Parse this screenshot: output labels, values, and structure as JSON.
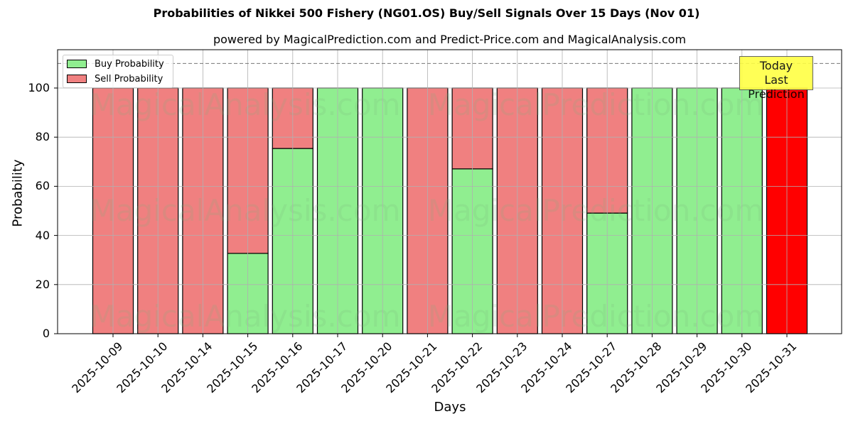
{
  "title": "Probabilities of Nikkei 500 Fishery (NG01.OS) Buy/Sell Signals Over 15 Days (Nov 01)",
  "subtitle": "powered by MagicalPrediction.com and Predict-Price.com and MagicalAnalysis.com",
  "legend": {
    "buy_label": "Buy Probability",
    "sell_label": "Sell Probability"
  },
  "annotation": {
    "line1": "Today",
    "line2": "Last Prediction"
  },
  "watermarks": [
    "MagicalAnalysis.com",
    "MagicalPrediction.com"
  ],
  "colors": {
    "buy": "#90ee90",
    "sell": "#f08080",
    "today": "#ff0000",
    "annotation_bg": "#ffff44"
  },
  "chart_data": {
    "type": "bar",
    "stacked": true,
    "title": "Probabilities of Nikkei 500 Fishery (NG01.OS) Buy/Sell Signals Over 15 Days (Nov 01)",
    "subtitle": "powered by MagicalPrediction.com and Predict-Price.com and MagicalAnalysis.com",
    "xlabel": "Days",
    "ylabel": "Probability",
    "ylim": [
      0,
      115.6
    ],
    "yticks": [
      0,
      20,
      40,
      60,
      80,
      100
    ],
    "grid": true,
    "legend_position": "upper left",
    "reference_line": {
      "y": 110,
      "style": "dashed"
    },
    "categories": [
      "2025-10-09",
      "2025-10-10",
      "2025-10-14",
      "2025-10-15",
      "2025-10-16",
      "2025-10-17",
      "2025-10-20",
      "2025-10-21",
      "2025-10-22",
      "2025-10-23",
      "2025-10-24",
      "2025-10-27",
      "2025-10-28",
      "2025-10-29",
      "2025-10-30",
      "2025-10-31"
    ],
    "series": [
      {
        "name": "Buy Probability",
        "values": [
          0,
          0,
          0,
          32.7,
          75.4,
          100,
          100,
          0,
          67.1,
          0,
          0,
          49.1,
          100,
          100,
          100,
          0
        ]
      },
      {
        "name": "Sell Probability",
        "values": [
          100,
          100,
          100,
          67.3,
          24.6,
          0,
          0,
          100,
          32.9,
          100,
          100,
          50.9,
          0,
          0,
          0,
          100
        ]
      }
    ],
    "highlight": {
      "category": "2025-10-31",
      "label": "Today Last Prediction",
      "color": "#ff0000"
    }
  }
}
